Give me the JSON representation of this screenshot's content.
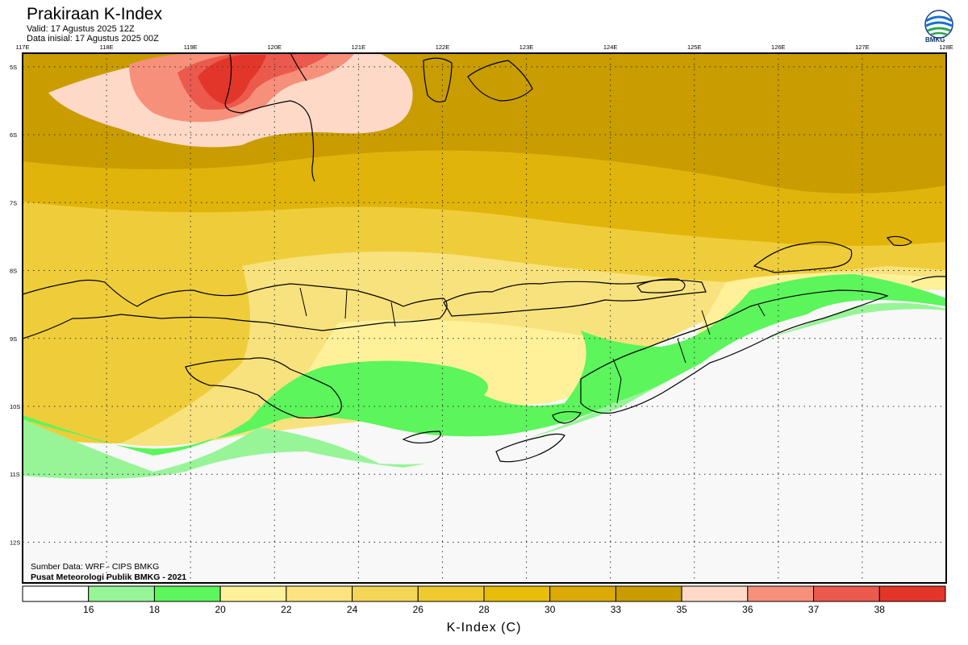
{
  "header": {
    "title": "Prakiraan K-Index",
    "valid": "Valid: 17 Agustus 2025 12Z",
    "initial": "Data inisial: 17 Agustus 2025 00Z"
  },
  "logo": {
    "text": "BMKG"
  },
  "map": {
    "lon_labels": [
      "117E",
      "118E",
      "119E",
      "120E",
      "121E",
      "122E",
      "123E",
      "124E",
      "125E",
      "126E",
      "127E",
      "128E"
    ],
    "lat_labels": [
      "5S",
      "6S",
      "7S",
      "8S",
      "9S",
      "10S",
      "11S",
      "12S"
    ],
    "lon_range": [
      117,
      128
    ],
    "lat_range": [
      -4.8,
      -12.6
    ],
    "grid": "dotted"
  },
  "credits": {
    "source": "Sumber Data: WRF - CIPS BMKG",
    "owner": "Pusat Meteorologi Publik BMKG - 2021"
  },
  "colorbar": {
    "title": "K-Index (C)",
    "ticks": [
      "16",
      "18",
      "20",
      "22",
      "24",
      "26",
      "28",
      "30",
      "33",
      "35",
      "36",
      "37",
      "38"
    ],
    "colors": [
      "#ffffff",
      "#97f597",
      "#5cf55c",
      "#fff199",
      "#fbe37f",
      "#f3d655",
      "#efca2f",
      "#e8bc0b",
      "#dcaa06",
      "#c99c00",
      "#ffd9c8",
      "#f7907a",
      "#ec5a4d",
      "#e3362a"
    ]
  },
  "palette": {
    "low_white": "#f8f8f8",
    "green_light": "#97f597",
    "green": "#5cf55c",
    "yellow_pale": "#fff199",
    "yellow_light": "#f8e27e",
    "yellow": "#efcd3a",
    "gold": "#e0b40a",
    "dark_gold": "#c99c00",
    "peach": "#ffd9c8",
    "salmon": "#f7907a",
    "red_light": "#ec5a4d",
    "red": "#e3362a"
  }
}
